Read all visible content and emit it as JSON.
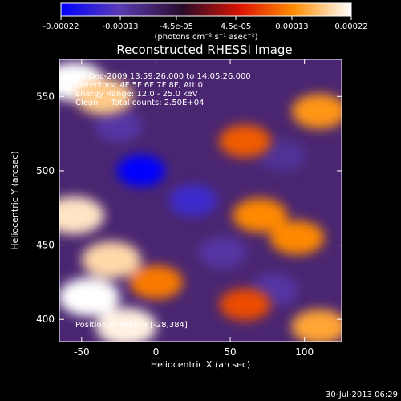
{
  "colorbar": {
    "tick_labels": [
      "-0.00022",
      "-0.00013",
      "-4.5e-05",
      "4.5e-05",
      "0.00013",
      "0.00022"
    ],
    "tick_values": [
      -0.00022,
      -0.00013,
      -4.5e-05,
      4.5e-05,
      0.00013,
      0.00022
    ],
    "range": [
      -0.00022,
      0.00022
    ],
    "unit_label": "(photons cm⁻² s⁻¹ asec⁻²)"
  },
  "chart_data": {
    "type": "heatmap",
    "title": "Reconstructed RHESSI Image",
    "xlabel": "Heliocentric X (arcsec)",
    "ylabel": "Heliocentric Y (arcsec)",
    "xlim": [
      -65,
      125
    ],
    "ylim": [
      385,
      575
    ],
    "x_ticks": [
      -50,
      0,
      50,
      100
    ],
    "x_tick_labels": [
      "-50",
      "0",
      "50",
      "100"
    ],
    "y_ticks": [
      400,
      450,
      500,
      550
    ],
    "y_tick_labels": [
      "400",
      "450",
      "500",
      "550"
    ],
    "colormap": [
      "#0000ff",
      "#5a3cb4",
      "#2a0a2a",
      "#dc1400",
      "#ff8c00",
      "#ffffff"
    ],
    "peak": [
      -28,
      384
    ],
    "bright_sources": [
      {
        "x": -55,
        "y": 560,
        "value": 0.00022
      },
      {
        "x": -35,
        "y": 550,
        "value": 0.00018
      },
      {
        "x": -55,
        "y": 470,
        "value": 0.0002
      },
      {
        "x": -30,
        "y": 440,
        "value": 0.00019
      },
      {
        "x": -45,
        "y": 415,
        "value": 0.00022
      },
      {
        "x": -20,
        "y": 395,
        "value": 0.00021
      },
      {
        "x": 0,
        "y": 425,
        "value": 0.00012
      },
      {
        "x": 70,
        "y": 470,
        "value": 0.00013
      },
      {
        "x": 95,
        "y": 455,
        "value": 0.00013
      },
      {
        "x": 110,
        "y": 540,
        "value": 0.00014
      },
      {
        "x": 60,
        "y": 520,
        "value": 0.0001
      },
      {
        "x": 110,
        "y": 395,
        "value": 0.00015
      },
      {
        "x": 60,
        "y": 410,
        "value": 9e-05
      }
    ],
    "dark_sources": [
      {
        "x": -10,
        "y": 500,
        "value": -0.00022
      },
      {
        "x": 25,
        "y": 480,
        "value": -0.00016
      },
      {
        "x": 45,
        "y": 445,
        "value": -0.00012
      },
      {
        "x": 80,
        "y": 420,
        "value": -0.00012
      },
      {
        "x": 85,
        "y": 510,
        "value": -0.00011
      },
      {
        "x": -25,
        "y": 530,
        "value": -0.00012
      }
    ]
  },
  "overlay": {
    "time_range": "15-Dec-2009 13:59:26.000 to 14:05:26.000",
    "detectors": "Detectors: 4F 5F 6F 7F 8F, Att 0",
    "energy_range": "Energy Range: 12.0 - 25.0 keV",
    "method_counts": "Clean     Total counts: 2.50E+04",
    "peak_label": "Position of Peak = [-28,384]"
  },
  "footer": {
    "timestamp": "30-Jul-2013 06:29"
  }
}
